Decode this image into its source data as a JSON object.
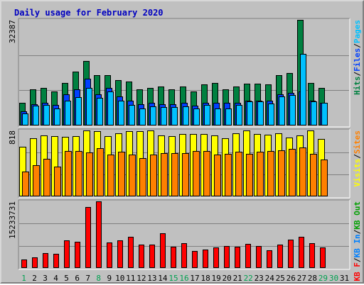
{
  "chart_data": {
    "type": "bar",
    "title": "Daily usage for February 2020",
    "categories": [
      "1",
      "2",
      "3",
      "4",
      "5",
      "6",
      "7",
      "8",
      "9",
      "10",
      "11",
      "12",
      "13",
      "14",
      "15",
      "16",
      "17",
      "18",
      "19",
      "20",
      "21",
      "22",
      "23",
      "24",
      "25",
      "26",
      "27",
      "28",
      "29",
      "30",
      "31"
    ],
    "weekend_days": [
      "1",
      "8",
      "15",
      "16",
      "22",
      "29",
      "30"
    ],
    "panels": [
      {
        "id": "hits",
        "max_label": "32387",
        "ymax": 32387,
        "legend": [
          {
            "text": "Hits",
            "color": "#008040"
          },
          {
            "text": "/",
            "color": "#000000"
          },
          {
            "text": "Files",
            "color": "#0040ff"
          },
          {
            "text": "/",
            "color": "#000000"
          },
          {
            "text": "Pages",
            "color": "#00c0ff"
          }
        ],
        "series": [
          {
            "name": "Hits",
            "color": "#008040",
            "values": [
              7000,
              11000,
              11500,
              10500,
              13000,
              16500,
              19800,
              15500,
              15500,
              14000,
              13500,
              11000,
              11500,
              12000,
              11000,
              12000,
              10500,
              12500,
              13000,
              11000,
              12000,
              12800,
              12800,
              12500,
              15500,
              16000,
              32387,
              13000,
              11500,
              null,
              null
            ]
          },
          {
            "name": "Files",
            "color": "#0040ff",
            "values": [
              4300,
              6500,
              7000,
              6200,
              9500,
              11000,
              14300,
              9500,
              11500,
              9000,
              7500,
              6500,
              7000,
              6500,
              6500,
              7000,
              6000,
              7000,
              7000,
              7000,
              7000,
              7500,
              7500,
              7500,
              9500,
              10000,
              10500,
              7500,
              7000,
              null,
              null
            ]
          },
          {
            "name": "Pages",
            "color": "#00c0ff",
            "values": [
              3800,
              6000,
              6300,
              5300,
              7700,
              8600,
              11500,
              8500,
              10500,
              7500,
              6300,
              5300,
              5800,
              5600,
              5600,
              5800,
              5300,
              6300,
              5300,
              5300,
              6200,
              7300,
              7300,
              6800,
              9000,
              9300,
              22000,
              7300,
              7000,
              null,
              null
            ]
          }
        ]
      },
      {
        "id": "visits",
        "max_label": "818",
        "ymax": 818,
        "legend": [
          {
            "text": "Visits",
            "color": "#ffff00"
          },
          {
            "text": "/",
            "color": "#000000"
          },
          {
            "text": "Sites",
            "color": "#ff8000"
          }
        ],
        "series": [
          {
            "name": "Visits",
            "color": "#ffff00",
            "values": [
              620,
              720,
              760,
              750,
              740,
              750,
              818,
              810,
              750,
              780,
              805,
              810,
              815,
              760,
              750,
              770,
              770,
              775,
              760,
              720,
              780,
              818,
              770,
              765,
              780,
              730,
              760,
              818,
              710,
              null,
              null
            ]
          },
          {
            "name": "Sites",
            "color": "#ff8000",
            "values": [
              310,
              385,
              470,
              370,
              560,
              565,
              545,
              595,
              515,
              550,
              515,
              475,
              520,
              540,
              535,
              540,
              560,
              565,
              520,
              525,
              550,
              525,
              550,
              565,
              575,
              585,
              610,
              525,
              455,
              null,
              null
            ]
          }
        ]
      },
      {
        "id": "kbytes",
        "max_label": "15233731",
        "ymax": 15233731,
        "legend": [
          {
            "text": "KB F",
            "color": "#ff0000"
          },
          {
            "text": "/",
            "color": "#000000"
          },
          {
            "text": "KB In",
            "color": "#0080ff"
          },
          {
            "text": "/",
            "color": "#000000"
          },
          {
            "text": "KB Out",
            "color": "#00a000"
          }
        ],
        "series": [
          {
            "name": "KB F",
            "color": "#ff0000",
            "values": [
              1880000,
              2480000,
              3480000,
              3170000,
              6310000,
              6000000,
              14000000,
              15233731,
              5900000,
              6310000,
              7050000,
              5300000,
              5300000,
              7940000,
              4900000,
              5660000,
              3890000,
              4210000,
              4750000,
              4970000,
              4880000,
              5530000,
              5000000,
              4100000,
              5330000,
              6470000,
              7060000,
              5640000,
              4750000,
              null,
              null
            ]
          }
        ]
      }
    ]
  }
}
